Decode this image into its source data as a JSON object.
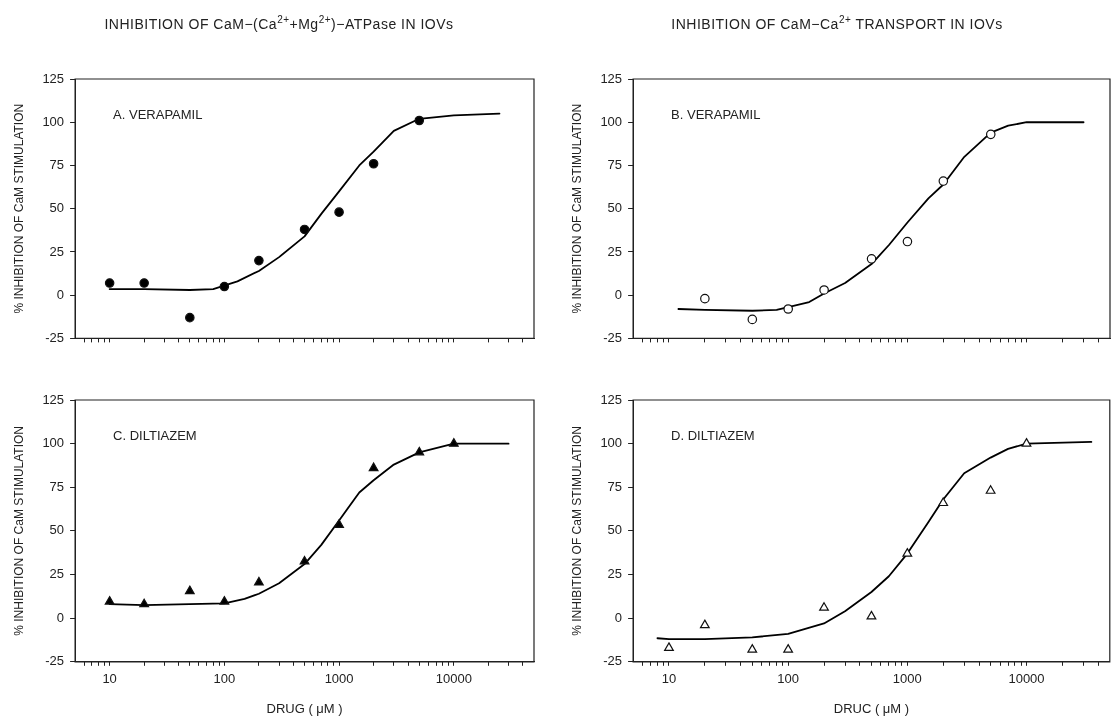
{
  "chart_data": [
    {
      "type": "scatter",
      "title": "INHIBITION OF CaM−(Ca$^{2+}$+Mg$^{2+}$)−ATPase IN IOVs",
      "ylabel": "% INHIBITION OF CaM STIMULATION",
      "annotations": [
        "A. VERAPAMIL"
      ],
      "log": "x",
      "tick_labels": "y",
      "xlim": [
        5,
        50000
      ],
      "xticks": [
        {
          "value": 6,
          "label": null
        },
        {
          "value": 7,
          "label": null
        },
        {
          "value": 8,
          "label": null
        },
        {
          "value": 9,
          "label": null
        },
        10,
        {
          "value": 20,
          "label": null
        },
        {
          "value": 30,
          "label": null
        },
        {
          "value": 40,
          "label": null
        },
        {
          "value": 50,
          "label": null
        },
        {
          "value": 60,
          "label": null
        },
        {
          "value": 70,
          "label": null
        },
        {
          "value": 80,
          "label": null
        },
        {
          "value": 90,
          "label": null
        },
        100,
        {
          "value": 200,
          "label": null
        },
        {
          "value": 300,
          "label": null
        },
        {
          "value": 400,
          "label": null
        },
        {
          "value": 500,
          "label": null
        },
        {
          "value": 600,
          "label": null
        },
        {
          "value": 700,
          "label": null
        },
        {
          "value": 800,
          "label": null
        },
        {
          "value": 900,
          "label": null
        },
        1000,
        {
          "value": 2000,
          "label": null
        },
        {
          "value": 3000,
          "label": null
        },
        {
          "value": 4000,
          "label": null
        },
        {
          "value": 5000,
          "label": null
        },
        {
          "value": 6000,
          "label": null
        },
        {
          "value": 7000,
          "label": null
        },
        {
          "value": 8000,
          "label": null
        },
        {
          "value": 9000,
          "label": null
        },
        10000,
        {
          "value": 20000,
          "label": null
        },
        {
          "value": 30000,
          "label": null
        },
        {
          "value": 40000,
          "label": null
        }
      ],
      "ylim": [
        -25,
        125
      ],
      "yticks": [
        -25,
        0,
        25,
        50,
        75,
        100,
        125
      ],
      "series": [
        {
          "type": "scatter",
          "marker": "circle",
          "color": "#000000",
          "x": [
            10,
            20,
            50,
            100,
            200,
            500,
            1000,
            2000,
            5000
          ],
          "values": [
            7,
            7,
            -13,
            5,
            20,
            38,
            48,
            76,
            101
          ]
        },
        {
          "type": "line",
          "marker": "none",
          "line_style": "solid",
          "color": "#000000",
          "x": [
            10,
            20,
            50,
            80,
            130,
            200,
            300,
            500,
            700,
            1000,
            1500,
            2000,
            3000,
            5000,
            10000,
            25000
          ],
          "values": [
            3.5,
            3.5,
            3,
            3.5,
            8,
            14,
            22,
            34,
            47,
            60,
            75,
            83,
            95,
            102,
            104,
            105
          ]
        }
      ]
    },
    {
      "type": "scatter",
      "title": "INHIBITION OF CaM−Ca$^{2+}$ TRANSPORT IN IOVs",
      "ylabel": "% INHIBITION OF CaM STIMULATION",
      "annotations": [
        "B. VERAPAMIL"
      ],
      "log": "x",
      "tick_labels": "y",
      "xlim": [
        5,
        50000
      ],
      "xticks": [
        {
          "value": 6,
          "label": null
        },
        {
          "value": 7,
          "label": null
        },
        {
          "value": 8,
          "label": null
        },
        {
          "value": 9,
          "label": null
        },
        10,
        {
          "value": 20,
          "label": null
        },
        {
          "value": 30,
          "label": null
        },
        {
          "value": 40,
          "label": null
        },
        {
          "value": 50,
          "label": null
        },
        {
          "value": 60,
          "label": null
        },
        {
          "value": 70,
          "label": null
        },
        {
          "value": 80,
          "label": null
        },
        {
          "value": 90,
          "label": null
        },
        100,
        {
          "value": 200,
          "label": null
        },
        {
          "value": 300,
          "label": null
        },
        {
          "value": 400,
          "label": null
        },
        {
          "value": 500,
          "label": null
        },
        {
          "value": 600,
          "label": null
        },
        {
          "value": 700,
          "label": null
        },
        {
          "value": 800,
          "label": null
        },
        {
          "value": 900,
          "label": null
        },
        1000,
        {
          "value": 2000,
          "label": null
        },
        {
          "value": 3000,
          "label": null
        },
        {
          "value": 4000,
          "label": null
        },
        {
          "value": 5000,
          "label": null
        },
        {
          "value": 6000,
          "label": null
        },
        {
          "value": 7000,
          "label": null
        },
        {
          "value": 8000,
          "label": null
        },
        {
          "value": 9000,
          "label": null
        },
        10000,
        {
          "value": 20000,
          "label": null
        },
        {
          "value": 30000,
          "label": null
        },
        {
          "value": 40000,
          "label": null
        }
      ],
      "ylim": [
        -25,
        125
      ],
      "yticks": [
        -25,
        0,
        25,
        50,
        75,
        100,
        125
      ],
      "series": [
        {
          "type": "scatter",
          "marker": "circle",
          "color": "#ffffff",
          "x": [
            20,
            50,
            100,
            200,
            500,
            1000,
            2000,
            5000
          ],
          "values": [
            -2,
            -14,
            -8,
            3,
            21,
            31,
            66,
            93
          ]
        },
        {
          "type": "line",
          "marker": "none",
          "line_style": "solid",
          "color": "#000000",
          "x": [
            12,
            20,
            50,
            80,
            150,
            200,
            300,
            500,
            700,
            1000,
            1500,
            2000,
            3000,
            5000,
            7000,
            10000,
            20000,
            30000
          ],
          "values": [
            -8,
            -8.5,
            -9,
            -8.5,
            -4,
            1,
            7,
            18,
            29,
            42,
            56,
            64,
            80,
            94,
            98,
            100,
            100,
            100
          ]
        }
      ]
    },
    {
      "type": "scatter",
      "xlabel": "DRUG ( μM )",
      "ylabel": "% INHIBITION OF CaM STIMULATION",
      "annotations": [
        "C. DILTIAZEM"
      ],
      "log": "x",
      "xlim": [
        5,
        50000
      ],
      "xticks": [
        {
          "value": 6,
          "label": null
        },
        {
          "value": 7,
          "label": null
        },
        {
          "value": 8,
          "label": null
        },
        {
          "value": 9,
          "label": null
        },
        10,
        {
          "value": 20,
          "label": null
        },
        {
          "value": 30,
          "label": null
        },
        {
          "value": 40,
          "label": null
        },
        {
          "value": 50,
          "label": null
        },
        {
          "value": 60,
          "label": null
        },
        {
          "value": 70,
          "label": null
        },
        {
          "value": 80,
          "label": null
        },
        {
          "value": 90,
          "label": null
        },
        100,
        {
          "value": 200,
          "label": null
        },
        {
          "value": 300,
          "label": null
        },
        {
          "value": 400,
          "label": null
        },
        {
          "value": 500,
          "label": null
        },
        {
          "value": 600,
          "label": null
        },
        {
          "value": 700,
          "label": null
        },
        {
          "value": 800,
          "label": null
        },
        {
          "value": 900,
          "label": null
        },
        1000,
        {
          "value": 2000,
          "label": null
        },
        {
          "value": 3000,
          "label": null
        },
        {
          "value": 4000,
          "label": null
        },
        {
          "value": 5000,
          "label": null
        },
        {
          "value": 6000,
          "label": null
        },
        {
          "value": 7000,
          "label": null
        },
        {
          "value": 8000,
          "label": null
        },
        {
          "value": 9000,
          "label": null
        },
        10000,
        {
          "value": 20000,
          "label": null
        },
        {
          "value": 30000,
          "label": null
        },
        {
          "value": 40000,
          "label": null
        }
      ],
      "ylim": [
        -25,
        125
      ],
      "yticks": [
        -25,
        0,
        25,
        50,
        75,
        100,
        125
      ],
      "series": [
        {
          "type": "scatter",
          "marker": "triangle",
          "color": "#000000",
          "x": [
            10,
            20,
            50,
            100,
            200,
            500,
            1000,
            2000,
            5000,
            10000
          ],
          "values": [
            9.5,
            8,
            15.5,
            9.5,
            20.5,
            32.5,
            53.5,
            86,
            95,
            100
          ]
        },
        {
          "type": "line",
          "marker": "none",
          "line_style": "solid",
          "color": "#000000",
          "x": [
            10,
            20,
            50,
            100,
            150,
            200,
            300,
            500,
            700,
            1000,
            1500,
            2000,
            3000,
            5000,
            10000,
            30000
          ],
          "values": [
            8,
            7.5,
            8,
            8.5,
            11,
            14,
            20,
            31,
            42,
            56,
            72,
            79,
            88,
            95,
            100,
            100
          ]
        }
      ]
    },
    {
      "type": "scatter",
      "xlabel": "DRUC ( μM )",
      "ylabel": "% INHIBITION OF CaM STIMULATION",
      "annotations": [
        "D. DILTIAZEM"
      ],
      "log": "x",
      "xlim": [
        5,
        50000
      ],
      "xticks": [
        {
          "value": 6,
          "label": null
        },
        {
          "value": 7,
          "label": null
        },
        {
          "value": 8,
          "label": null
        },
        {
          "value": 9,
          "label": null
        },
        10,
        {
          "value": 20,
          "label": null
        },
        {
          "value": 30,
          "label": null
        },
        {
          "value": 40,
          "label": null
        },
        {
          "value": 50,
          "label": null
        },
        {
          "value": 60,
          "label": null
        },
        {
          "value": 70,
          "label": null
        },
        {
          "value": 80,
          "label": null
        },
        {
          "value": 90,
          "label": null
        },
        100,
        {
          "value": 200,
          "label": null
        },
        {
          "value": 300,
          "label": null
        },
        {
          "value": 400,
          "label": null
        },
        {
          "value": 500,
          "label": null
        },
        {
          "value": 600,
          "label": null
        },
        {
          "value": 700,
          "label": null
        },
        {
          "value": 800,
          "label": null
        },
        {
          "value": 900,
          "label": null
        },
        1000,
        {
          "value": 2000,
          "label": null
        },
        {
          "value": 3000,
          "label": null
        },
        {
          "value": 4000,
          "label": null
        },
        {
          "value": 5000,
          "label": null
        },
        {
          "value": 6000,
          "label": null
        },
        {
          "value": 7000,
          "label": null
        },
        {
          "value": 8000,
          "label": null
        },
        {
          "value": 9000,
          "label": null
        },
        10000,
        {
          "value": 20000,
          "label": null
        },
        {
          "value": 30000,
          "label": null
        },
        {
          "value": 40000,
          "label": null
        }
      ],
      "ylim": [
        -25,
        125
      ],
      "yticks": [
        -25,
        0,
        25,
        50,
        75,
        100,
        125
      ],
      "series": [
        {
          "type": "scatter",
          "marker": "triangle",
          "color": "#ffffff",
          "x": [
            10,
            20,
            50,
            100,
            200,
            500,
            1000,
            2000,
            5000,
            10000
          ],
          "values": [
            -17,
            -4,
            -18,
            -18,
            6,
            1,
            37,
            66,
            73,
            100
          ]
        },
        {
          "type": "line",
          "marker": "none",
          "line_style": "solid",
          "color": "#000000",
          "x": [
            8,
            10,
            20,
            50,
            100,
            200,
            300,
            500,
            700,
            1000,
            1500,
            2000,
            3000,
            5000,
            7000,
            10000,
            35000
          ],
          "values": [
            -11.5,
            -12,
            -12,
            -11,
            -9,
            -3,
            4,
            15,
            24,
            37,
            55,
            68,
            83,
            92,
            97,
            100,
            101
          ]
        }
      ]
    }
  ]
}
